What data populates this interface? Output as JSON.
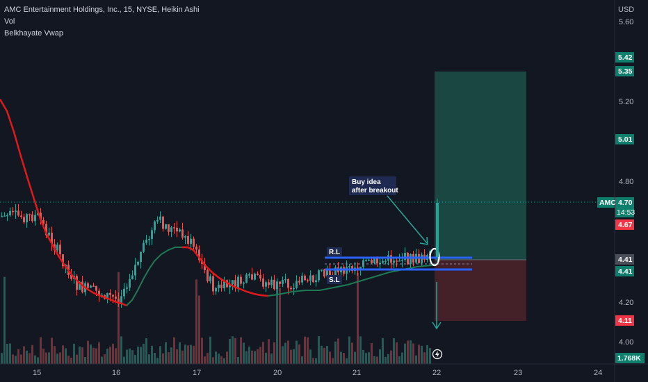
{
  "legend": {
    "title": "AMC Entertainment Holdings, Inc., 15, NYSE, Heikin Ashi",
    "vol": "Vol",
    "vwap": "Belkhayate Vwap"
  },
  "axis": {
    "currency": "USD",
    "y_ticks": [
      "5.60",
      "5.20",
      "4.80",
      "4.20",
      "4.00"
    ],
    "x_ticks": [
      "15",
      "16",
      "17",
      "20",
      "21",
      "22",
      "23",
      "24"
    ]
  },
  "price_tags": {
    "top_partial": "5.42",
    "target": "5.35",
    "mid": "5.01",
    "symbol": "AMC",
    "last_price": "4.70",
    "countdown": "14:53",
    "prev": "4.67",
    "entry_a": "4.41",
    "entry_b": "4.41",
    "stop": "4.11",
    "volume": "1.768K"
  },
  "annotations": {
    "idea_line1": "Buy idea",
    "idea_line2": "after breakout",
    "resistance": "R.L",
    "support": "S.L"
  },
  "colors": {
    "background": "#131722",
    "up": "#26a69a",
    "down": "#ef5350",
    "vwap_red": "#e31919",
    "vwap_green": "#1e7a55",
    "box_line": "#2962ff",
    "profit_zone": "#1d5048",
    "loss_zone": "#4a2229",
    "tag_green": "#0f7f6d",
    "tag_red": "#f23645",
    "tag_gray": "#4a4e59"
  },
  "chart_data": {
    "type": "candlestick",
    "title": "AMC Entertainment Holdings, Inc., 15, NYSE, Heikin Ashi",
    "xlabel": "",
    "ylabel": "USD",
    "ylim": [
      3.91,
      5.66
    ],
    "x_tick_labels": [
      "15",
      "16",
      "17",
      "20",
      "21",
      "22",
      "23",
      "24"
    ],
    "y_tick_labels": [
      "5.60",
      "5.20",
      "4.80",
      "4.20",
      "4.00"
    ],
    "price_path": {
      "x": [
        "15",
        "15.5",
        "15.8",
        "16",
        "16.5",
        "16.9",
        "17.2",
        "17.7",
        "20",
        "20.5",
        "21",
        "21.5",
        "21.9",
        "22"
      ],
      "y": [
        4.62,
        4.28,
        4.25,
        4.22,
        4.6,
        4.5,
        4.27,
        4.32,
        4.28,
        4.33,
        4.38,
        4.42,
        4.41,
        4.7
      ]
    },
    "vwap": {
      "x": [
        "14.6",
        "15",
        "15.5",
        "16",
        "16.5",
        "17",
        "17.5",
        "20",
        "20.5",
        "21",
        "21.5",
        "22"
      ],
      "y": [
        5.2,
        4.7,
        4.32,
        4.2,
        4.4,
        4.48,
        4.33,
        4.27,
        4.28,
        4.32,
        4.38,
        4.4
      ]
    },
    "volume_spikes_x": [
      "14.6",
      "16",
      "17",
      "20",
      "21",
      "22"
    ],
    "levels": {
      "resistance": 4.42,
      "support": 4.37
    },
    "position": {
      "entry": 4.41,
      "target": 5.35,
      "stop": 4.11,
      "last": 4.7
    },
    "grid": false,
    "legend": "top-left"
  }
}
